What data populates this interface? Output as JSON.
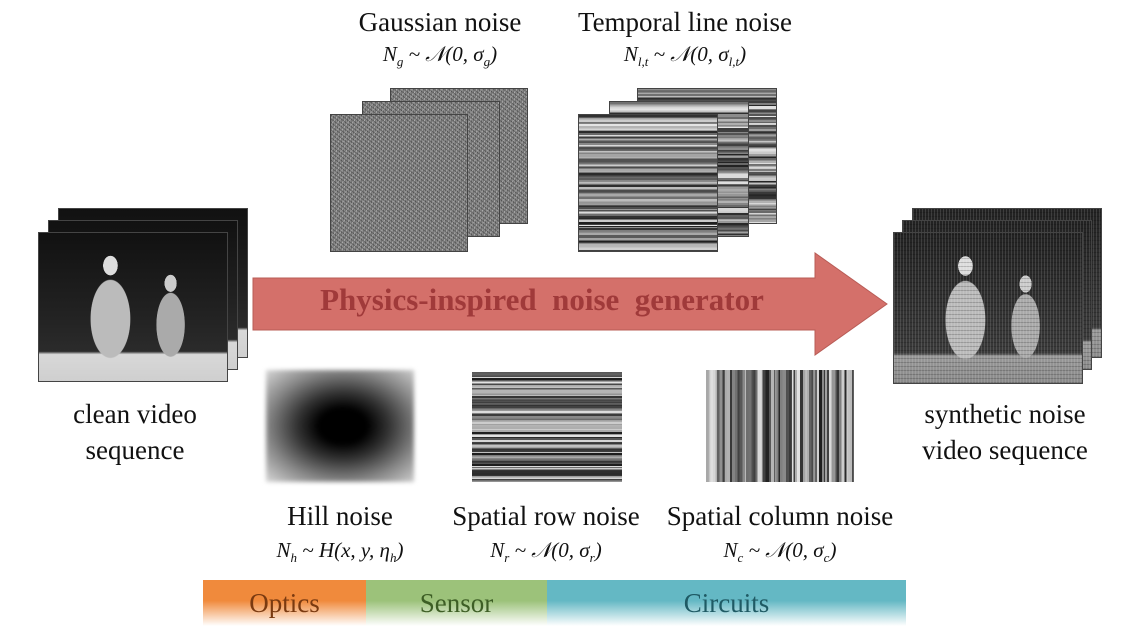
{
  "arrow": {
    "label": "Physics-inspired  noise  generator",
    "color": "#d4706a",
    "text_color": "#a03a3a"
  },
  "inputs": {
    "clean_label_line1": "clean video",
    "clean_label_line2": "sequence"
  },
  "outputs": {
    "synthetic_label_line1": "synthetic noise",
    "synthetic_label_line2": "video sequence"
  },
  "noises": {
    "gaussian": {
      "name": "Gaussian noise",
      "lhs": "N",
      "lhs_sub": "g",
      "rhs": "~ 𝒩(0, σ",
      "rhs_sub": "g",
      "close": ")"
    },
    "temporal": {
      "name": "Temporal line noise",
      "lhs": "N",
      "lhs_sub": "l,t",
      "rhs": "~ 𝒩(0, σ",
      "rhs_sub": "l,t",
      "close": ")"
    },
    "hill": {
      "name": "Hill noise",
      "lhs": "N",
      "lhs_sub": "h",
      "rhs": "~ H(x, y, η",
      "rhs_sub": "h",
      "close": ")"
    },
    "row": {
      "name": "Spatial row noise",
      "lhs": "N",
      "lhs_sub": "r",
      "rhs": "~ 𝒩(0, σ",
      "rhs_sub": "r",
      "close": ")"
    },
    "column": {
      "name": "Spatial column noise",
      "lhs": "N",
      "lhs_sub": "c",
      "rhs": "~ 𝒩(0, σ",
      "rhs_sub": "c",
      "close": ")"
    }
  },
  "source_bar": [
    {
      "label": "Optics",
      "color": "#f08a3c",
      "text_color": "#7a3a10"
    },
    {
      "label": "Sensor",
      "color": "#9cc27a",
      "text_color": "#3d5e25"
    },
    {
      "label": "Circuits",
      "color": "#64b8c4",
      "text_color": "#1f5a64"
    }
  ]
}
